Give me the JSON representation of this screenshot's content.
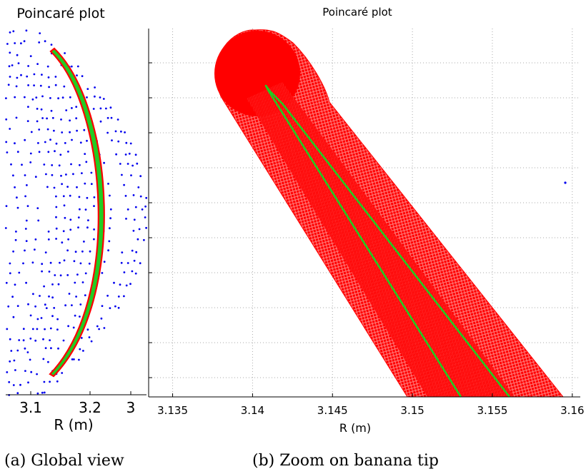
{
  "colors": {
    "orbits": "#0000ee",
    "banana_fill": "#ff0000",
    "orbit_curve": "#22cc22",
    "grid": "#aaaaaa"
  },
  "captions": {
    "a": "(a) Global view",
    "b": "(b) Zoom on banana tip"
  },
  "chart_data": [
    {
      "type": "scatter",
      "title": "Poincaré plot",
      "xlabel": "R (m)",
      "ylabel": "",
      "xticks": [
        "3.1",
        "3.2",
        "3"
      ],
      "xlim": [
        3.04,
        3.3
      ],
      "grid": false,
      "series": [
        {
          "kind": "poincare-points",
          "color": "#0000ee",
          "x_apex_values": [
            3.02,
            3.04,
            3.06,
            3.08,
            3.1,
            3.12,
            3.135,
            3.15,
            3.16,
            3.175,
            3.19,
            3.205,
            3.22,
            3.235,
            3.265,
            3.28,
            3.29,
            3.3
          ]
        },
        {
          "kind": "banana-orbit",
          "color": "#ff0000",
          "fill_color": "#22cc22",
          "x": [
            3.143,
            3.175,
            3.205,
            3.23,
            3.248,
            3.255,
            3.248,
            3.23,
            3.205,
            3.175,
            3.143
          ]
        }
      ]
    },
    {
      "type": "scatter",
      "title": "Poincaré plot",
      "xlabel": "R (m)",
      "ylabel": "",
      "xticks": [
        "3.135",
        "3.14",
        "3.145",
        "3.15",
        "3.155",
        "3.16"
      ],
      "xlim": [
        3.1335,
        3.1605
      ],
      "grid": true,
      "series": [
        {
          "kind": "banana-tip-region",
          "color": "#ff0000",
          "tip_center_x": 3.141,
          "lower_left_x": 3.1525,
          "lower_right_x": 3.1593
        },
        {
          "kind": "orbit-curve",
          "color": "#22cc22",
          "x": [
            3.1533,
            3.141,
            3.1563
          ]
        },
        {
          "kind": "stray-point",
          "color": "#0000ee",
          "x": [
            3.1595
          ]
        }
      ]
    }
  ]
}
